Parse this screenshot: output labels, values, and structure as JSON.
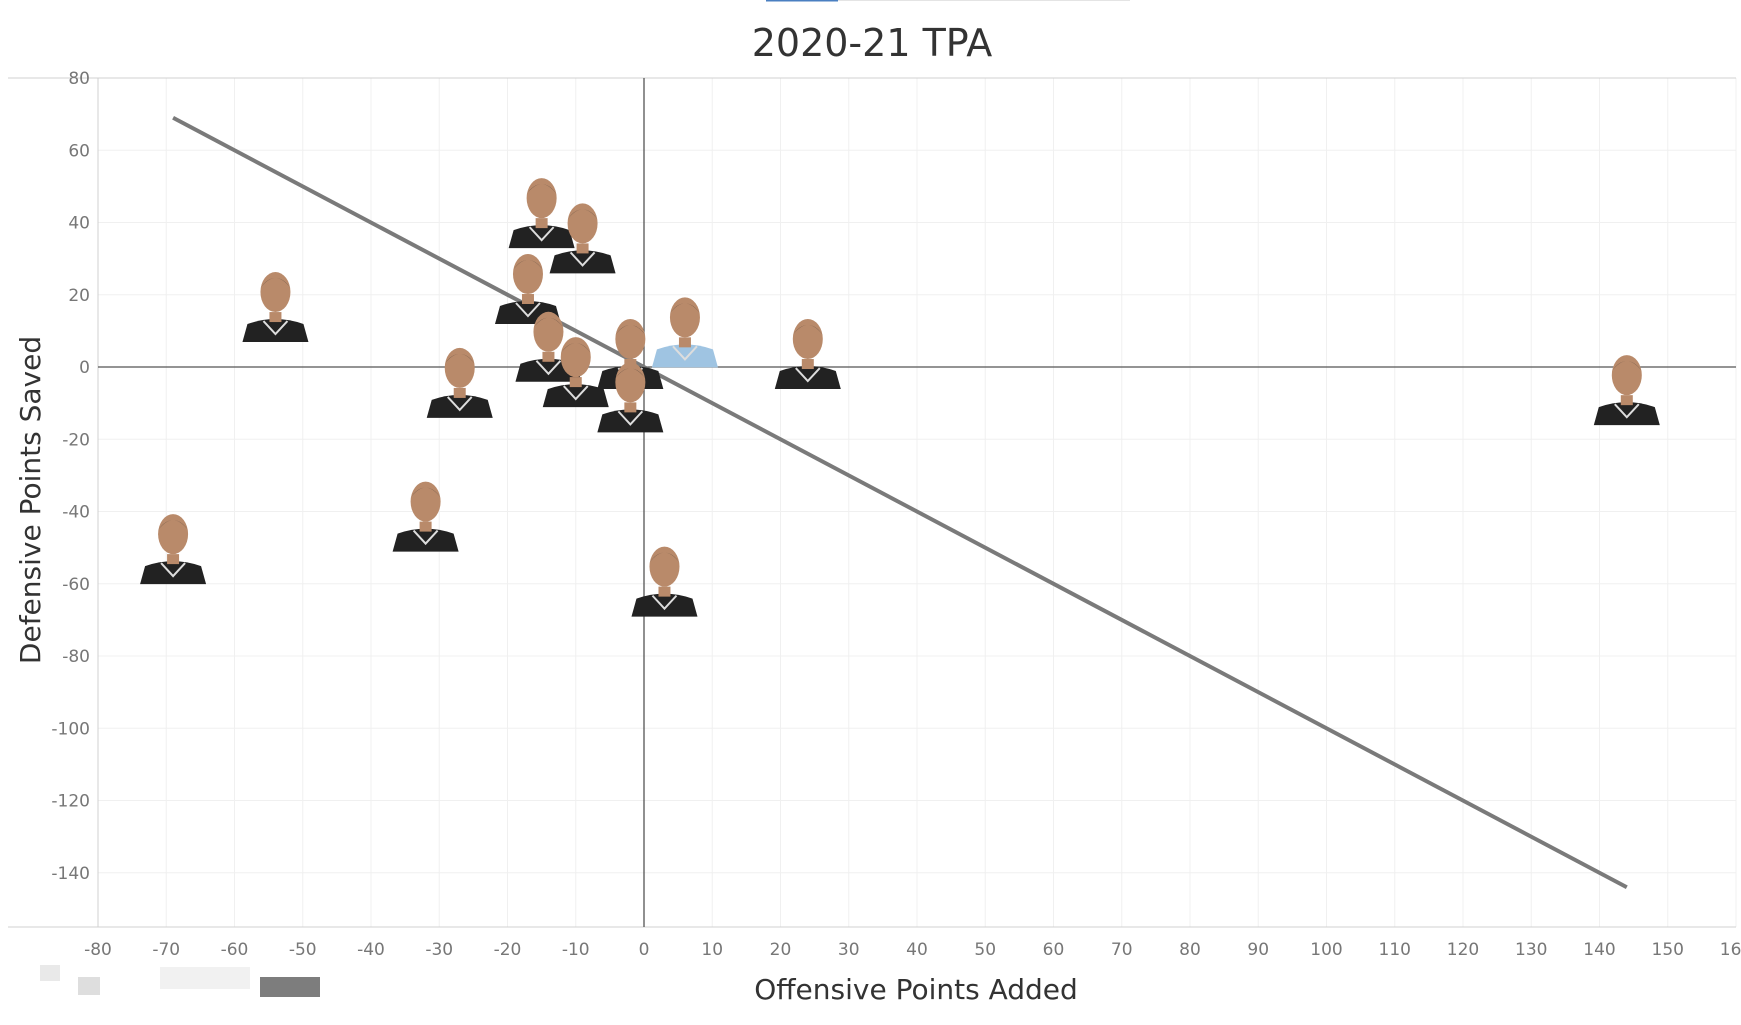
{
  "chart_data": {
    "type": "scatter",
    "title": "2020-21 TPA",
    "xlabel": "Offensive Points Added",
    "ylabel": "Defensive Points Saved",
    "xlim": [
      -80,
      160
    ],
    "ylim": [
      -155,
      80
    ],
    "xticks": [
      -80,
      -70,
      -60,
      -50,
      -40,
      -30,
      -20,
      -10,
      0,
      10,
      20,
      30,
      40,
      50,
      60,
      70,
      80,
      90,
      100,
      110,
      120,
      130,
      140,
      150,
      160
    ],
    "yticks": [
      80,
      60,
      40,
      20,
      0,
      -20,
      -40,
      -60,
      -80,
      -100,
      -120,
      -140
    ],
    "xtick_labels": [
      "-80",
      "-70",
      "-60",
      "-50",
      "-40",
      "-30",
      "-20",
      "-10",
      "0",
      "10",
      "20",
      "30",
      "40",
      "50",
      "60",
      "70",
      "80",
      "90",
      "100",
      "110",
      "120",
      "130",
      "140",
      "150",
      "160"
    ],
    "ytick_labels": [
      "80",
      "60",
      "40",
      "20",
      "0",
      "-20",
      "-40",
      "-60",
      "-80",
      "-100",
      "-120",
      "-140"
    ],
    "grid": true,
    "zero_lines": true,
    "marker": "player-headshot",
    "points": [
      {
        "x": -15,
        "y": 39,
        "jersey": "dark"
      },
      {
        "x": -9,
        "y": 32,
        "jersey": "dark"
      },
      {
        "x": -54,
        "y": 13,
        "jersey": "dark"
      },
      {
        "x": -17,
        "y": 18,
        "jersey": "dark"
      },
      {
        "x": -27,
        "y": -8,
        "jersey": "dark"
      },
      {
        "x": -14,
        "y": 2,
        "jersey": "dark"
      },
      {
        "x": -10,
        "y": -5,
        "jersey": "dark"
      },
      {
        "x": -2,
        "y": 0,
        "jersey": "dark"
      },
      {
        "x": 6,
        "y": 6,
        "jersey": "light-blue"
      },
      {
        "x": 24,
        "y": 0,
        "jersey": "dark"
      },
      {
        "x": -2,
        "y": -12,
        "jersey": "dark"
      },
      {
        "x": 144,
        "y": -10,
        "jersey": "dark"
      },
      {
        "x": -32,
        "y": -45,
        "jersey": "dark"
      },
      {
        "x": -69,
        "y": -54,
        "jersey": "dark"
      },
      {
        "x": 3,
        "y": -63,
        "jersey": "dark"
      }
    ],
    "trend_line": {
      "x": [
        -69,
        144
      ],
      "y": [
        69,
        -144
      ],
      "color": "#7a7a7a"
    }
  },
  "colors": {
    "grid": "#f0f0f0",
    "axis": "#d0d0d0",
    "zero_line": "#555555",
    "trend": "#7a7a7a",
    "jersey_dark": "#222222",
    "jersey_light": "#9fc4e2",
    "skin": "#b98a6a"
  }
}
